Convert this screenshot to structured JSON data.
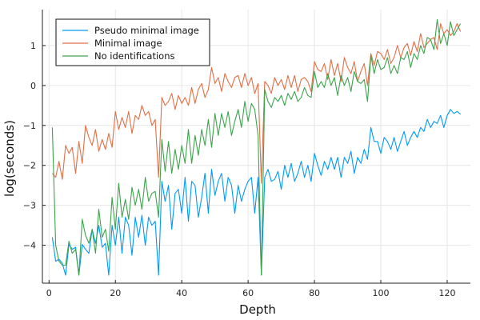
{
  "chart_data": {
    "type": "line",
    "title": "",
    "xlabel": "Depth",
    "ylabel": "log(seconds)",
    "xlim": [
      -2,
      127
    ],
    "ylim": [
      -4.95,
      1.9
    ],
    "xticks": [
      0,
      20,
      40,
      60,
      80,
      100,
      120
    ],
    "yticks": [
      -4,
      -3,
      -2,
      -1,
      0,
      1
    ],
    "grid": true,
    "legend": "top-left",
    "x": [
      1,
      2,
      3,
      4,
      5,
      6,
      7,
      8,
      9,
      10,
      11,
      12,
      13,
      14,
      15,
      16,
      17,
      18,
      19,
      20,
      21,
      22,
      23,
      24,
      25,
      26,
      27,
      28,
      29,
      30,
      31,
      32,
      33,
      34,
      35,
      36,
      37,
      38,
      39,
      40,
      41,
      42,
      43,
      44,
      45,
      46,
      47,
      48,
      49,
      50,
      51,
      52,
      53,
      54,
      55,
      56,
      57,
      58,
      59,
      60,
      61,
      62,
      63,
      64,
      65,
      66,
      67,
      68,
      69,
      70,
      71,
      72,
      73,
      74,
      75,
      76,
      77,
      78,
      79,
      80,
      81,
      82,
      83,
      84,
      85,
      86,
      87,
      88,
      89,
      90,
      91,
      92,
      93,
      94,
      95,
      96,
      97,
      98,
      99,
      100,
      101,
      102,
      103,
      104,
      105,
      106,
      107,
      108,
      109,
      110,
      111,
      112,
      113,
      114,
      115,
      116,
      117,
      118,
      119,
      120,
      121,
      122,
      123,
      124
    ],
    "series": [
      {
        "name": "Pseudo minimal image",
        "color": "#009AFA",
        "values": [
          -3.8,
          -4.4,
          -4.35,
          -4.45,
          -4.75,
          -3.98,
          -4.1,
          -4.05,
          -4.75,
          -3.98,
          -4.1,
          -4.2,
          -3.6,
          -3.95,
          -3.5,
          -4.05,
          -3.95,
          -4.75,
          -3.5,
          -4.0,
          -3.3,
          -4.2,
          -3.3,
          -3.5,
          -4.25,
          -3.3,
          -3.8,
          -3.25,
          -4.0,
          -3.3,
          -3.5,
          -3.4,
          -4.75,
          -2.4,
          -2.9,
          -2.5,
          -3.6,
          -2.7,
          -2.6,
          -3.2,
          -2.3,
          -3.4,
          -2.4,
          -2.5,
          -3.3,
          -2.8,
          -2.2,
          -3.2,
          -2.1,
          -2.75,
          -2.4,
          -2.2,
          -2.9,
          -2.3,
          -2.5,
          -3.2,
          -2.5,
          -2.9,
          -2.6,
          -2.4,
          -2.3,
          -3.2,
          -2.3,
          -4.75,
          -2.3,
          -2.1,
          -2.4,
          -2.35,
          -2.15,
          -2.6,
          -2.0,
          -2.3,
          -1.95,
          -2.4,
          -2.2,
          -1.9,
          -2.3,
          -2.0,
          -2.4,
          -1.7,
          -2.0,
          -2.25,
          -1.9,
          -2.1,
          -1.8,
          -2.1,
          -1.8,
          -2.3,
          -1.8,
          -1.95,
          -1.65,
          -2.2,
          -1.8,
          -1.95,
          -1.6,
          -1.85,
          -1.05,
          -1.4,
          -1.4,
          -1.7,
          -1.3,
          -1.4,
          -1.6,
          -1.3,
          -1.65,
          -1.4,
          -1.15,
          -1.5,
          -1.3,
          -1.15,
          -1.3,
          -1.05,
          -1.15,
          -0.85,
          -1.05,
          -0.9,
          -0.95,
          -0.75,
          -1.05,
          -0.75,
          -0.6,
          -0.7,
          -0.65,
          -0.72
        ]
      },
      {
        "name": "Minimal image",
        "color": "#E26F46",
        "values": [
          -2.2,
          -2.3,
          -1.9,
          -2.35,
          -1.5,
          -1.7,
          -1.55,
          -2.2,
          -1.4,
          -1.95,
          -1.0,
          -1.3,
          -1.5,
          -1.1,
          -1.65,
          -1.35,
          -1.6,
          -1.2,
          -1.55,
          -0.65,
          -1.1,
          -0.8,
          -1.05,
          -0.65,
          -1.2,
          -0.75,
          -0.85,
          -0.5,
          -0.75,
          -0.65,
          -1.0,
          -0.85,
          -2.3,
          -0.3,
          -0.5,
          -0.4,
          -0.2,
          -0.6,
          -0.25,
          -0.45,
          -0.3,
          -0.5,
          -0.05,
          -0.45,
          -0.1,
          0.05,
          -0.3,
          -0.1,
          0.45,
          0.05,
          0.2,
          -0.15,
          0.3,
          0.1,
          -0.05,
          0.2,
          0.25,
          -0.05,
          0.3,
          0.0,
          0.2,
          -0.2,
          0.05,
          -2.45,
          0.1,
          0.0,
          -0.2,
          0.2,
          0.0,
          0.15,
          -0.1,
          0.25,
          -0.05,
          0.25,
          -0.15,
          0.15,
          0.2,
          0.1,
          -0.15,
          0.6,
          0.4,
          0.35,
          0.55,
          0.15,
          0.65,
          0.25,
          0.55,
          0.1,
          0.7,
          0.45,
          0.3,
          0.6,
          0.1,
          0.35,
          0.55,
          0.0,
          0.8,
          0.5,
          0.85,
          0.8,
          0.65,
          0.9,
          0.55,
          0.7,
          1.0,
          0.7,
          0.95,
          1.05,
          0.75,
          1.1,
          0.85,
          1.3,
          0.95,
          1.05,
          1.15,
          1.2,
          0.9,
          1.55,
          1.3,
          1.4,
          1.25,
          1.35,
          1.55,
          1.35
        ]
      },
      {
        "name": "No identifications",
        "color": "#3DA44D",
        "values": [
          -1.05,
          -4.0,
          -4.4,
          -4.5,
          -4.5,
          -3.9,
          -4.2,
          -4.1,
          -4.75,
          -3.35,
          -3.75,
          -3.95,
          -3.6,
          -4.2,
          -3.1,
          -3.8,
          -3.6,
          -4.15,
          -2.8,
          -3.6,
          -2.45,
          -3.3,
          -2.85,
          -3.35,
          -2.55,
          -3.0,
          -2.6,
          -3.1,
          -2.3,
          -2.9,
          -2.7,
          -2.65,
          -3.3,
          -1.35,
          -2.15,
          -1.4,
          -2.2,
          -1.6,
          -2.1,
          -1.5,
          -1.95,
          -1.1,
          -1.95,
          -1.25,
          -1.75,
          -1.1,
          -1.5,
          -0.85,
          -1.55,
          -0.7,
          -1.25,
          -0.7,
          -1.05,
          -0.65,
          -1.25,
          -0.9,
          -0.6,
          -1.05,
          -0.4,
          -0.9,
          -0.45,
          -0.6,
          -1.25,
          -4.75,
          -0.1,
          -0.4,
          -0.55,
          -0.3,
          -0.4,
          -0.25,
          -0.5,
          -0.2,
          -0.35,
          -0.15,
          -0.4,
          -0.3,
          -0.05,
          -0.25,
          -0.3,
          0.35,
          -0.05,
          0.1,
          -0.05,
          0.3,
          0.0,
          0.2,
          -0.25,
          0.25,
          0.0,
          0.2,
          -0.15,
          0.35,
          0.1,
          0.05,
          0.15,
          -0.4,
          0.75,
          0.3,
          0.65,
          0.4,
          0.45,
          0.7,
          0.3,
          0.5,
          0.3,
          0.7,
          0.65,
          0.85,
          0.45,
          0.8,
          0.65,
          1.0,
          0.8,
          1.2,
          1.15,
          0.9,
          1.65,
          1.05,
          1.3,
          1.0,
          1.6,
          1.25,
          1.4,
          1.55
        ]
      }
    ]
  }
}
